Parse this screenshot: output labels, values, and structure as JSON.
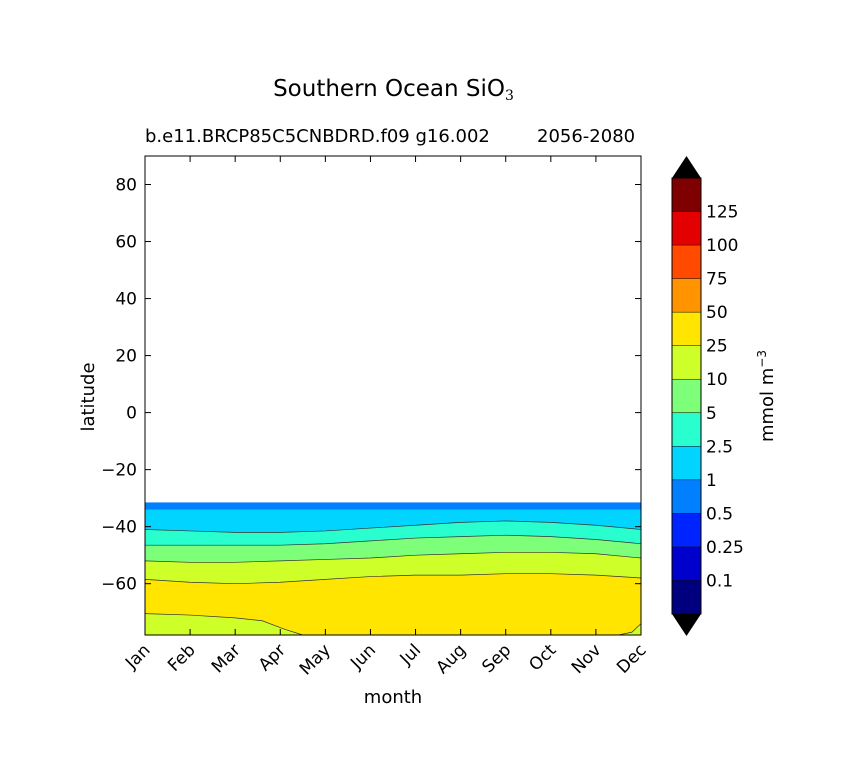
{
  "chart_data": {
    "type": "contour",
    "title": "Southern Ocean SiO",
    "title_subscript": "3",
    "subtitle_left": "b.e11.BRCP85C5CNBDRD.f09 g16.002",
    "subtitle_right": "2056-2080",
    "xlabel": "month",
    "ylabel": "latitude",
    "x_ticks": [
      "Jan",
      "Feb",
      "Mar",
      "Apr",
      "May",
      "Jun",
      "Jul",
      "Aug",
      "Sep",
      "Oct",
      "Nov",
      "Dec"
    ],
    "y_ticks": [
      80,
      60,
      40,
      20,
      0,
      -20,
      -40,
      -60
    ],
    "y_tick_labels": [
      "80",
      "60",
      "40",
      "20",
      "0",
      "−20",
      "−40",
      "−60"
    ],
    "ylim": [
      -78,
      90
    ],
    "xlim": [
      0,
      11
    ],
    "colorbar": {
      "label": "mmol m",
      "label_superscript": "−3",
      "levels": [
        0.1,
        0.25,
        0.5,
        1,
        2.5,
        5,
        10,
        25,
        50,
        75,
        100,
        125
      ],
      "level_labels": [
        "0.1",
        "0.25",
        "0.5",
        "1",
        "2.5",
        "5",
        "10",
        "25",
        "50",
        "75",
        "100",
        "125"
      ],
      "colors": [
        "#00007f",
        "#0000cd",
        "#0024ff",
        "#0080ff",
        "#00d4ff",
        "#29ffce",
        "#7dff7a",
        "#ceff29",
        "#ffe500",
        "#ff9400",
        "#ff4a00",
        "#e30000",
        "#7f0000"
      ],
      "extend_low_color": "#000000",
      "extend_high_color": "#000000"
    },
    "fields": {
      "no_data_above_lat": -31.5,
      "top_band": {
        "lat_top": -31.5,
        "lat_bottom": -34,
        "color": "#0080ff"
      },
      "bands": [
        {
          "label": "1-2.5",
          "color": "#00d4ff",
          "upper": [
            -34,
            -34,
            -34,
            -34,
            -34,
            -34,
            -34,
            -34,
            -34,
            -34,
            -34,
            -34
          ],
          "lower": [
            -41,
            -41.5,
            -42,
            -42,
            -41.5,
            -40.5,
            -39.5,
            -38.5,
            -38,
            -38.5,
            -39.5,
            -41
          ]
        },
        {
          "label": "2.5-5",
          "color": "#29ffce",
          "lower": [
            -46.5,
            -46.5,
            -46.5,
            -46.5,
            -46,
            -45,
            -44,
            -43.5,
            -43,
            -43.5,
            -44.5,
            -46
          ]
        },
        {
          "label": "5-10",
          "color": "#7dff7a",
          "lower": [
            -52,
            -52.5,
            -52.5,
            -52,
            -51.5,
            -51,
            -50,
            -49.5,
            -49,
            -49,
            -49.5,
            -51
          ]
        },
        {
          "label": "10-25",
          "color": "#ceff29",
          "lower": [
            -58.5,
            -59.5,
            -60,
            -59.5,
            -58.5,
            -57.5,
            -57,
            -57,
            -56.5,
            -56.5,
            -57,
            -58
          ]
        },
        {
          "label": "25-50",
          "color": "#ffe500",
          "lower_profile": [
            [
              0,
              -70.5
            ],
            [
              1,
              -71
            ],
            [
              2,
              -72
            ],
            [
              2.6,
              -73
            ],
            [
              3.1,
              -76
            ],
            [
              3.5,
              -78
            ],
            [
              10.5,
              -78
            ],
            [
              10.8,
              -77
            ],
            [
              11,
              -74
            ]
          ]
        },
        {
          "label": "10-25 (south)",
          "color": "#ceff29"
        }
      ]
    }
  }
}
